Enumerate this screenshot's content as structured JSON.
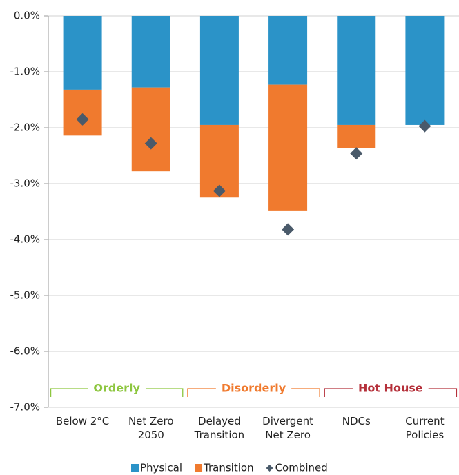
{
  "chart_data": {
    "type": "stacked_bar",
    "categories": [
      "Below 2°C",
      "Net Zero 2050",
      "Delayed Transition",
      "Divergent Net Zero",
      "NDCs",
      "Current Policies"
    ],
    "series": [
      {
        "name": "Physical",
        "color": "#2b93c8",
        "values": [
          -1.32,
          -1.28,
          -1.95,
          -1.23,
          -1.95,
          -1.95
        ]
      },
      {
        "name": "Transition",
        "color": "#f07a2e",
        "values": [
          -0.82,
          -1.5,
          -1.3,
          -2.25,
          -0.42,
          0
        ]
      },
      {
        "name": "Combined",
        "color": "#4a5a6a",
        "marker": "diamond",
        "values": [
          -1.85,
          -2.28,
          -3.13,
          -3.82,
          -2.46,
          -1.97
        ]
      }
    ],
    "groups": [
      {
        "name": "Orderly",
        "color": "#8dc63f"
      },
      {
        "name": "Disorderly",
        "color": "#f07a2e"
      },
      {
        "name": "Hot House",
        "color": "#b5303a"
      }
    ],
    "ylim": [
      -7,
      0
    ],
    "yticks": [
      {
        "value": 0,
        "label": "0.0%"
      },
      {
        "value": -1,
        "label": "-1.0%"
      },
      {
        "value": -2,
        "label": "-2.0%"
      },
      {
        "value": -3,
        "label": "-3.0%"
      },
      {
        "value": -4,
        "label": "-4.0%"
      },
      {
        "value": -5,
        "label": "-5.0%"
      },
      {
        "value": -6,
        "label": "-6.0%"
      },
      {
        "value": -7,
        "label": "-7.0%"
      }
    ],
    "grid": true,
    "legend": "bottom"
  }
}
